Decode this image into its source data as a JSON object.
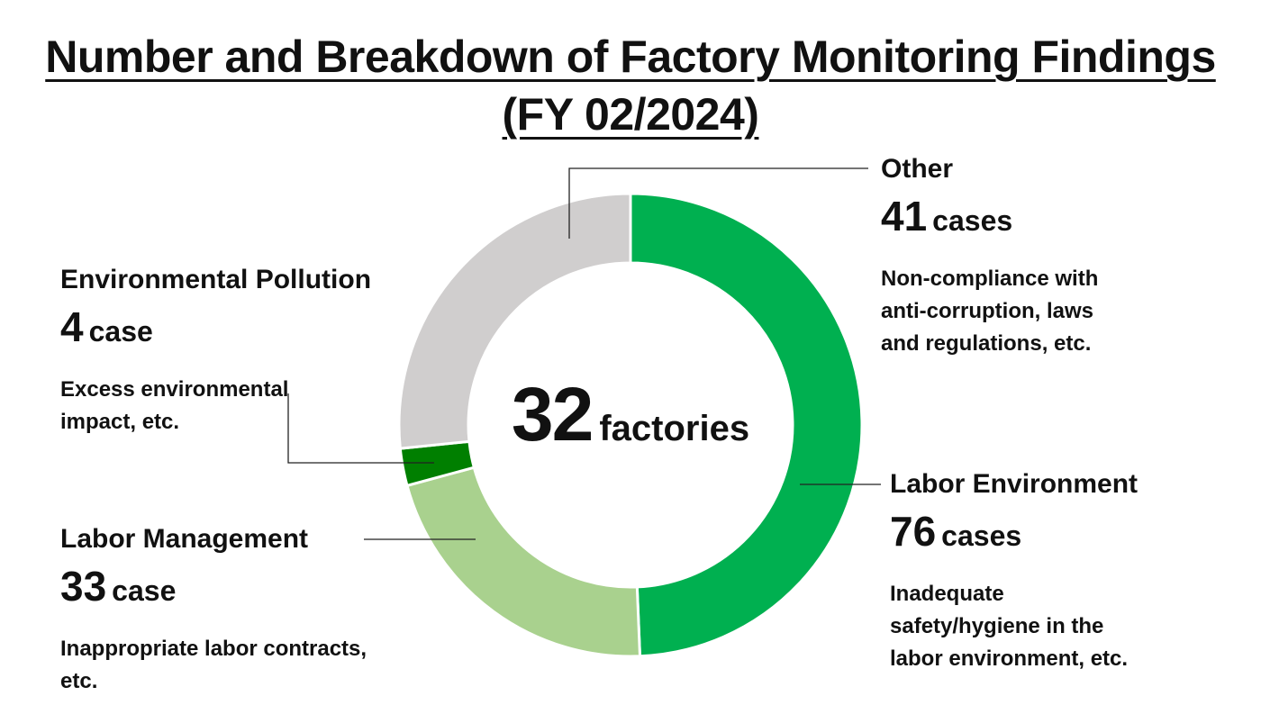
{
  "title": {
    "line1": "Number and Breakdown of Factory Monitoring Findings",
    "line2": "(FY 02/2024)"
  },
  "center": {
    "value": "32",
    "unit": "factories"
  },
  "chart_data": {
    "type": "pie",
    "title": "Number and Breakdown of Factory Monitoring Findings (FY 02/2024)",
    "categories": [
      "Labor Environment",
      "Labor Management",
      "Environmental Pollution",
      "Other"
    ],
    "values": [
      76,
      33,
      4,
      41
    ],
    "colors": [
      "#00b050",
      "#a9d18e",
      "#007f00",
      "#d0cece"
    ],
    "donut": true,
    "start_angle_deg": 0,
    "direction": "clockwise"
  },
  "labels": {
    "other": {
      "name": "Other",
      "count": "41",
      "unit": "cases",
      "desc": [
        "Non-compliance with",
        "anti-corruption, laws",
        "and regulations, etc."
      ]
    },
    "labor_env": {
      "name": "Labor Environment",
      "count": "76",
      "unit": "cases",
      "desc": [
        "Inadequate",
        "safety/hygiene in the",
        "labor environment, etc."
      ]
    },
    "env": {
      "name": "Environmental Pollution",
      "count": "4",
      "unit": "case",
      "desc": [
        "Excess environmental",
        "impact, etc."
      ]
    },
    "labor_mgmt": {
      "name": "Labor Management",
      "count": "33",
      "unit": "case",
      "desc": [
        "Inappropriate labor contracts,",
        "etc."
      ]
    }
  }
}
